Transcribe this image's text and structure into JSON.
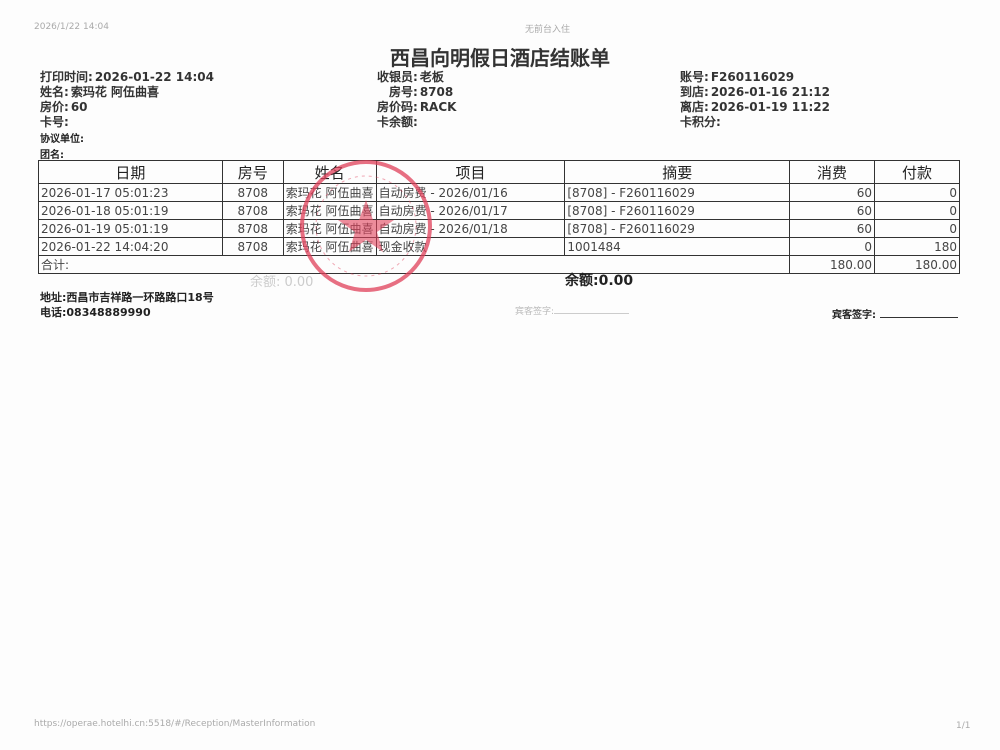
{
  "print_header": {
    "datetime": "2026/1/22 14:04",
    "center": "无前台入住"
  },
  "title": "西昌向明假日酒店结账单",
  "info": {
    "print_time_label": "打印时间:",
    "print_time": "2026-01-22 14:04",
    "name_label": "姓名:",
    "name": "索玛花 阿伍曲喜",
    "rate_label": "房价:",
    "rate": "60",
    "card_label": "卡号:",
    "agreement_label": "协议单位:",
    "group_label": "团名:",
    "cashier_label": "收银员:",
    "cashier": "老板",
    "room_label": "房号:",
    "room": "8708",
    "rate_code_label": "房价码:",
    "rate_code": "RACK",
    "card_balance_label": "卡余额:",
    "account_label": "账号:",
    "account": "F260116029",
    "arrival_label": "到店:",
    "arrival": "2026-01-16 21:12",
    "departure_label": "离店:",
    "departure": "2026-01-19 11:22",
    "points_label": "卡积分:"
  },
  "table": {
    "headers": [
      "日期",
      "房号",
      "姓名",
      "项目",
      "摘要",
      "消费",
      "付款"
    ],
    "rows": [
      [
        "2026-01-17 05:01:23",
        "8708",
        "索玛花 阿伍曲喜",
        "自动房费 - 2026/01/16",
        "[8708] - F260116029",
        "60",
        "0"
      ],
      [
        "2026-01-18 05:01:19",
        "8708",
        "索玛花 阿伍曲喜",
        "自动房费 - 2026/01/17",
        "[8708] - F260116029",
        "60",
        "0"
      ],
      [
        "2026-01-19 05:01:19",
        "8708",
        "索玛花 阿伍曲喜",
        "自动房费 - 2026/01/18",
        "[8708] - F260116029",
        "60",
        "0"
      ],
      [
        "2026-01-22 14:04:20",
        "8708",
        "索玛花 阿伍曲喜",
        "现金收款",
        "1001484",
        "0",
        "180"
      ]
    ],
    "total_label": "合计:",
    "total_charge": "180.00",
    "total_payment": "180.00"
  },
  "balance_label": "余额:",
  "balance": "0.00",
  "ghost_balance": "余额: 0.00",
  "address_label": "地址:",
  "address": "西昌市吉祥路一环路路口18号",
  "phone_label": "电话:",
  "phone": "08348889990",
  "signature_label": "宾客签字:",
  "ghost_signature": "宾客签字:",
  "footer": {
    "url": "https://operae.hotelhi.cn:5518/#/Reception/MasterInformation",
    "page": "1/1"
  },
  "stamp_color": "#e0405a"
}
